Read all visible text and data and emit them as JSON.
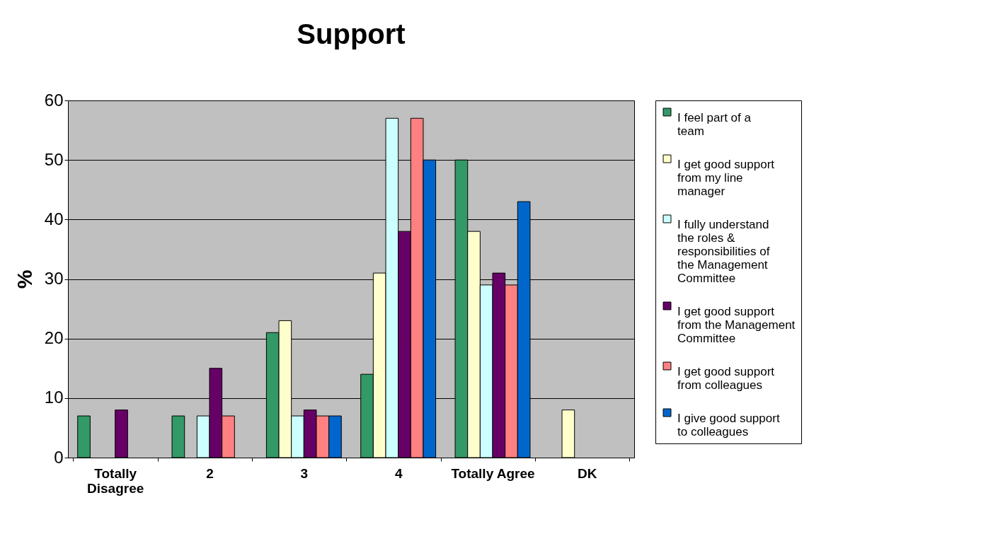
{
  "chart_data": {
    "type": "bar",
    "title": "Support",
    "ylabel": "%",
    "categories": [
      "Totally Disagree",
      "2",
      "3",
      "4",
      "Totally Agree",
      "DK"
    ],
    "series": [
      {
        "name": "I feel part of a team",
        "color": "#339966",
        "values": [
          7,
          7,
          21,
          14,
          50,
          null
        ]
      },
      {
        "name": "I get good support from my line manager",
        "color": "#ffffcc",
        "values": [
          null,
          null,
          23,
          31,
          38,
          8
        ]
      },
      {
        "name": "I fully understand the roles & responsibilities of the Management Committee",
        "color": "#ccffff",
        "values": [
          null,
          7,
          7,
          57,
          29,
          null
        ]
      },
      {
        "name": "I get good support from the Management Committee",
        "color": "#660066",
        "values": [
          8,
          15,
          8,
          38,
          31,
          null
        ]
      },
      {
        "name": "I get good support from colleagues",
        "color": "#ff8080",
        "values": [
          null,
          7,
          7,
          57,
          29,
          null
        ]
      },
      {
        "name": "I give good support to colleagues",
        "color": "#0066cc",
        "values": [
          null,
          null,
          7,
          50,
          43,
          null
        ]
      }
    ],
    "ylim": [
      0,
      60
    ],
    "yticks": [
      0,
      10,
      20,
      30,
      40,
      50,
      60
    ],
    "grid": "y",
    "legend": "right"
  }
}
